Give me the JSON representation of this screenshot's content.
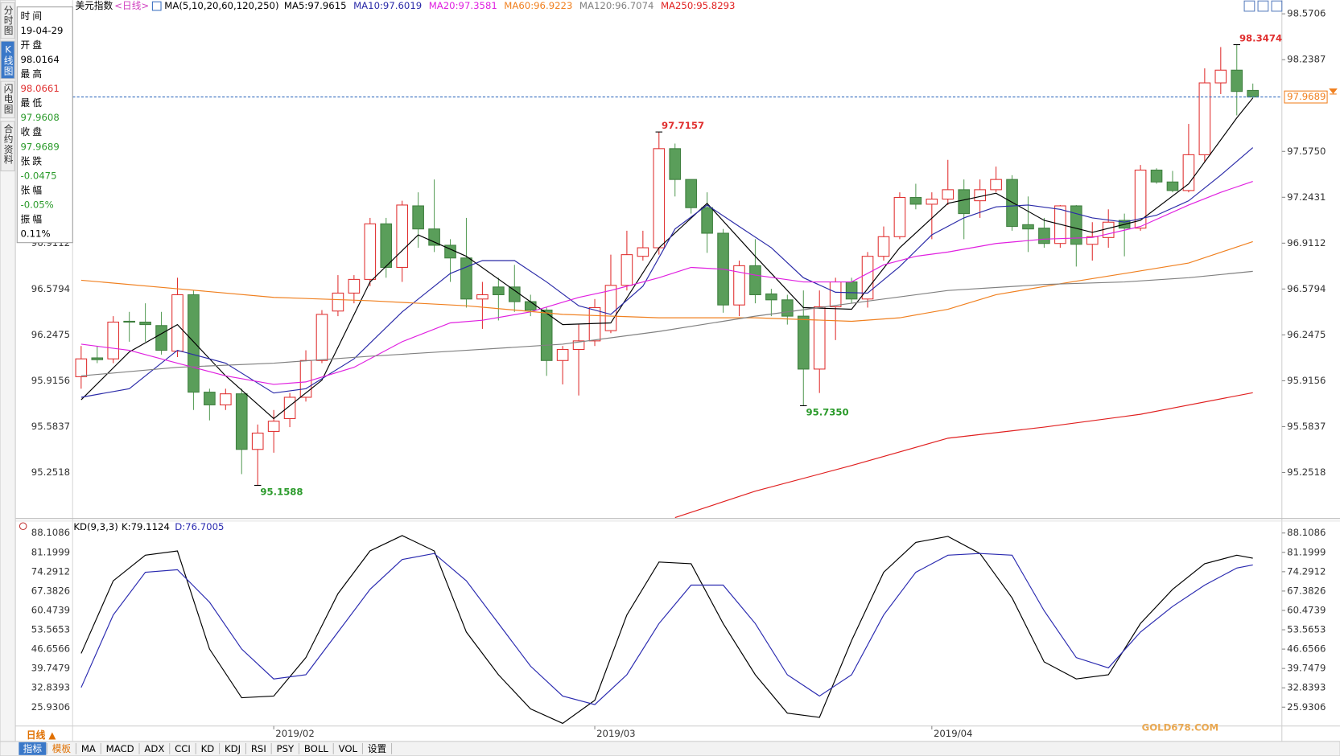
{
  "header": {
    "name": "美元指数",
    "period": "<日线>",
    "indicator": "MA(5,10,20,60,120,250)"
  },
  "sidebar_tabs": [
    {
      "label": "分时图",
      "active": false
    },
    {
      "label": "K线图",
      "active": true
    },
    {
      "label": "闪电图",
      "active": false
    },
    {
      "label": "合约资料",
      "active": false
    }
  ],
  "info_panel": [
    {
      "label": "时间",
      "value": "19-04-29",
      "color": "#000000"
    },
    {
      "label": "开盘",
      "value": "98.0164",
      "color": "#000000"
    },
    {
      "label": "最高",
      "value": "98.0661",
      "color": "#e03030"
    },
    {
      "label": "最低",
      "value": "97.9608",
      "color": "#2a9a2a"
    },
    {
      "label": "收盘",
      "value": "97.9689",
      "color": "#2a9a2a"
    },
    {
      "label": "张跌",
      "value": "-0.0475",
      "color": "#2a9a2a"
    },
    {
      "label": "张幅",
      "value": "-0.05%",
      "color": "#2a9a2a"
    },
    {
      "label": "振幅",
      "value": "0.11%",
      "color": "#000000"
    }
  ],
  "chart_data": [
    {
      "type": "candlestick",
      "up_color": "#e03030",
      "down_color": "#5a9e5a",
      "xlim": [
        -0.53,
        74.81
      ],
      "ylim": [
        94.919,
        98.639
      ],
      "yticks": [
        98.5706,
        98.2387,
        {
          "value": 97.575,
          "label": "97.5750"
        },
        97.2431,
        96.9112,
        96.5794,
        96.2475,
        95.9156,
        95.5837,
        95.2518
      ],
      "xticks": [
        {
          "value": 12,
          "label": "2019/02"
        },
        {
          "value": 32,
          "label": "2019/03"
        },
        {
          "value": 53,
          "label": "2019/04"
        }
      ],
      "open": [
        95.945,
        96.081,
        96.074,
        96.346,
        96.34,
        96.315,
        96.13,
        96.538,
        95.833,
        95.741,
        95.821,
        95.419,
        95.549,
        95.642,
        95.796,
        96.062,
        96.42,
        96.55,
        96.649,
        97.051,
        96.736,
        97.181,
        97.014,
        96.896,
        96.804,
        96.507,
        96.594,
        96.594,
        96.488,
        96.427,
        96.062,
        96.142,
        96.204,
        96.278,
        96.606,
        96.816,
        96.878,
        97.595,
        97.372,
        97.168,
        96.983,
        96.464,
        96.748,
        96.544,
        96.501,
        96.383,
        96.0,
        96.451,
        96.631,
        96.507,
        96.816,
        96.958,
        97.242,
        97.193,
        97.23,
        97.298,
        97.218,
        97.298,
        97.372,
        97.045,
        97.02,
        96.909,
        97.181,
        96.903,
        96.952,
        97.076,
        97.02,
        97.44,
        97.354,
        97.292,
        97.551,
        98.071,
        98.163,
        98.0164
      ],
      "high": [
        96.167,
        96.167,
        96.383,
        96.414,
        96.476,
        96.414,
        96.661,
        96.569,
        95.858,
        95.858,
        95.858,
        95.599,
        95.704,
        95.827,
        96.136,
        96.427,
        96.68,
        96.68,
        97.094,
        97.094,
        97.218,
        97.279,
        97.372,
        96.94,
        97.094,
        96.631,
        96.661,
        96.754,
        96.538,
        96.445,
        96.167,
        96.322,
        96.507,
        96.828,
        97.001,
        97.001,
        97.7157,
        97.632,
        97.372,
        97.279,
        97.014,
        96.785,
        96.94,
        96.581,
        96.538,
        96.569,
        96.569,
        96.661,
        96.661,
        96.847,
        97.032,
        97.279,
        97.341,
        97.279,
        97.514,
        97.372,
        97.372,
        97.465,
        97.403,
        97.249,
        97.094,
        97.187,
        97.187,
        97.063,
        97.156,
        97.125,
        97.477,
        97.453,
        97.434,
        97.774,
        98.176,
        98.33,
        98.3474,
        98.0661
      ],
      "low": [
        95.858,
        96.043,
        96.043,
        96.198,
        96.198,
        96.105,
        96.087,
        95.704,
        95.629,
        95.704,
        95.24,
        95.1588,
        95.395,
        95.58,
        95.765,
        96.043,
        96.383,
        96.476,
        96.6,
        96.661,
        96.631,
        96.878,
        96.847,
        96.631,
        96.445,
        96.291,
        96.352,
        96.414,
        96.383,
        95.951,
        95.889,
        95.809,
        96.167,
        96.26,
        96.569,
        96.785,
        96.828,
        97.249,
        97.125,
        96.841,
        96.408,
        96.383,
        96.476,
        96.383,
        96.322,
        95.735,
        95.827,
        96.21,
        96.476,
        96.445,
        96.785,
        96.94,
        97.156,
        96.94,
        97.187,
        96.94,
        97.094,
        97.279,
        97.001,
        96.847,
        96.878,
        96.878,
        96.742,
        96.785,
        96.878,
        96.816,
        97.001,
        97.341,
        97.279,
        97.279,
        97.496,
        97.99,
        97.836,
        97.9608
      ],
      "close": [
        96.074,
        96.068,
        96.34,
        96.34,
        96.322,
        96.136,
        96.538,
        95.833,
        95.741,
        95.821,
        95.419,
        95.537,
        95.623,
        95.796,
        96.062,
        96.396,
        96.55,
        96.649,
        97.051,
        96.736,
        97.187,
        97.014,
        96.896,
        96.804,
        96.507,
        96.538,
        96.538,
        96.488,
        96.427,
        96.062,
        96.142,
        96.204,
        96.445,
        96.606,
        96.828,
        96.878,
        97.595,
        97.372,
        97.168,
        96.983,
        96.464,
        96.748,
        96.538,
        96.501,
        96.383,
        96.0,
        96.451,
        96.631,
        96.507,
        96.816,
        96.958,
        97.242,
        97.193,
        97.23,
        97.298,
        97.125,
        97.298,
        97.372,
        97.032,
        97.014,
        96.909,
        97.181,
        96.903,
        96.958,
        97.063,
        97.02,
        97.44,
        97.354,
        97.292,
        97.551,
        98.071,
        98.163,
        98.009,
        97.9689
      ],
      "series": [
        {
          "name": "MA5:97.9615",
          "color": "#000000",
          "x": [
            0,
            3,
            6,
            9,
            12,
            15,
            18,
            21,
            24,
            27,
            30,
            33,
            36,
            39,
            42,
            45,
            48,
            51,
            54,
            57,
            60,
            63,
            66,
            69,
            72,
            73
          ],
          "values": [
            95.778,
            96.124,
            96.322,
            95.951,
            95.642,
            95.92,
            96.631,
            96.971,
            96.816,
            96.569,
            96.322,
            96.334,
            96.878,
            97.199,
            96.816,
            96.445,
            96.433,
            96.878,
            97.199,
            97.273,
            97.076,
            96.989,
            97.076,
            97.341,
            97.817,
            97.9615
          ]
        },
        {
          "name": "MA10:97.6019",
          "color": "#2a2aa8",
          "x": [
            0,
            3,
            6,
            9,
            12,
            14,
            17,
            20,
            23,
            25,
            27,
            29,
            31,
            33,
            35,
            37,
            39,
            41,
            43,
            45,
            47,
            49,
            51,
            53,
            55,
            57,
            59,
            61,
            63,
            65,
            67,
            69,
            71,
            73
          ],
          "values": [
            95.796,
            95.858,
            96.136,
            96.043,
            95.827,
            95.858,
            96.074,
            96.414,
            96.692,
            96.785,
            96.785,
            96.631,
            96.458,
            96.396,
            96.6,
            97.014,
            97.187,
            97.032,
            96.878,
            96.661,
            96.556,
            96.55,
            96.742,
            96.971,
            97.094,
            97.174,
            97.187,
            97.156,
            97.094,
            97.063,
            97.113,
            97.218,
            97.403,
            97.6019
          ]
        },
        {
          "name": "MA20:97.3581",
          "color": "#e020e0",
          "x": [
            0,
            3,
            6,
            9,
            12,
            14,
            17,
            20,
            23,
            25,
            28,
            31,
            33,
            36,
            38,
            40,
            42,
            45,
            48,
            50,
            52,
            54,
            57,
            60,
            63,
            66,
            69,
            71,
            73
          ],
          "values": [
            96.18,
            96.136,
            96.043,
            95.951,
            95.889,
            95.907,
            96.013,
            96.198,
            96.334,
            96.353,
            96.414,
            96.519,
            96.569,
            96.661,
            96.736,
            96.723,
            96.68,
            96.631,
            96.631,
            96.754,
            96.816,
            96.847,
            96.909,
            96.94,
            96.952,
            97.032,
            97.187,
            97.279,
            97.3581
          ]
        },
        {
          "name": "MA60:96.9223",
          "color": "#f08020",
          "x": [
            0,
            6,
            12,
            18,
            24,
            30,
            36,
            42,
            48,
            51,
            54,
            57,
            61,
            65,
            69,
            73
          ],
          "values": [
            96.643,
            96.581,
            96.519,
            96.495,
            96.458,
            96.396,
            96.371,
            96.371,
            96.346,
            96.371,
            96.433,
            96.538,
            96.618,
            96.692,
            96.767,
            96.9223
          ]
        },
        {
          "name": "MA120:96.7074",
          "color": "#808080",
          "x": [
            0,
            6,
            12,
            18,
            24,
            30,
            36,
            42,
            48,
            54,
            60,
            65,
            69,
            73
          ],
          "values": [
            95.951,
            96.013,
            96.043,
            96.093,
            96.136,
            96.18,
            96.272,
            96.383,
            96.476,
            96.569,
            96.612,
            96.631,
            96.661,
            96.7074
          ]
        },
        {
          "name": "MA250:95.8293",
          "color": "#e02020",
          "x": [
            37,
            42,
            48,
            54,
            60,
            66,
            73
          ],
          "values": [
            94.925,
            95.117,
            95.302,
            95.5,
            95.58,
            95.673,
            95.8293
          ]
        }
      ],
      "annotations": [
        {
          "index": 72,
          "value": 98.3474,
          "label": "98.3474",
          "position": "above",
          "color": "#e03030"
        },
        {
          "index": 36,
          "value": 97.7157,
          "label": "97.7157",
          "position": "above",
          "color": "#e03030"
        },
        {
          "index": 45,
          "value": 95.735,
          "label": "95.7350",
          "position": "below",
          "color": "#2a9a2a"
        },
        {
          "index": 11,
          "value": 95.1588,
          "label": "95.1588",
          "position": "below",
          "color": "#2a9a2a"
        }
      ],
      "last_price": 97.9689,
      "last_price_color": "#f08020"
    },
    {
      "type": "line",
      "title": "KD(9,3,3)",
      "xlim": [
        -0.53,
        74.81
      ],
      "ylim": [
        19.2,
        91.77
      ],
      "yticks": [
        88.1086,
        81.1999,
        74.2912,
        67.3826,
        60.4739,
        53.5653,
        46.6566,
        39.7479,
        32.8393,
        25.9306
      ],
      "series": [
        {
          "name": "K:79.1124",
          "color": "#000000",
          "x": [
            0,
            2,
            4,
            6,
            8,
            10,
            12,
            14,
            16,
            18,
            20,
            22,
            24,
            26,
            28,
            30,
            32,
            34,
            36,
            38,
            40,
            42,
            44,
            46,
            48,
            50,
            52,
            54,
            56,
            58,
            60,
            62,
            64,
            66,
            68,
            70,
            72,
            73
          ],
          "values": [
            45.13,
            71.04,
            80.19,
            81.71,
            46.66,
            29.28,
            29.89,
            43.61,
            66.47,
            81.71,
            87.2,
            81.71,
            52.75,
            37.51,
            25.32,
            20.14,
            28.37,
            58.85,
            77.75,
            77.14,
            55.8,
            37.51,
            23.8,
            22.27,
            49.71,
            74.09,
            84.76,
            86.89,
            80.79,
            64.95,
            42.09,
            35.99,
            37.51,
            55.8,
            67.99,
            77.14,
            80.19,
            79.1124
          ]
        },
        {
          "name": "D:76.7005",
          "color": "#2a2ab0",
          "x": [
            0,
            2,
            4,
            6,
            8,
            10,
            12,
            14,
            16,
            18,
            20,
            22,
            24,
            26,
            28,
            30,
            32,
            34,
            36,
            38,
            40,
            42,
            44,
            46,
            48,
            50,
            52,
            54,
            56,
            58,
            60,
            62,
            64,
            66,
            68,
            70,
            72,
            73
          ],
          "values": [
            32.94,
            58.85,
            74.09,
            75.0,
            63.42,
            46.66,
            35.99,
            37.51,
            52.75,
            67.99,
            78.66,
            80.79,
            71.04,
            55.8,
            40.56,
            29.89,
            26.85,
            37.51,
            55.8,
            69.52,
            69.52,
            55.8,
            37.51,
            29.89,
            37.51,
            58.85,
            74.09,
            80.19,
            80.79,
            80.19,
            60.37,
            43.61,
            39.95,
            52.75,
            61.9,
            69.52,
            75.61,
            76.7005
          ]
        }
      ]
    }
  ],
  "toolbar": {
    "period": "日线 ▲",
    "tabs": [
      {
        "label": "指标",
        "active": true
      },
      {
        "label": "模板",
        "color": "#e07000"
      },
      {
        "label": "MA"
      },
      {
        "label": "MACD"
      },
      {
        "label": "ADX"
      },
      {
        "label": "CCI"
      },
      {
        "label": "KD"
      },
      {
        "label": "KDJ"
      },
      {
        "label": "RSI"
      },
      {
        "label": "PSY"
      },
      {
        "label": "BOLL"
      },
      {
        "label": "VOL"
      },
      {
        "label": "设置"
      }
    ]
  },
  "watermark": "GOLD678.COM"
}
